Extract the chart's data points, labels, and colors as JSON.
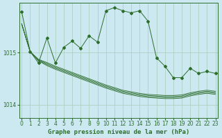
{
  "title": "Graphe pression niveau de la mer (hPa)",
  "bg_color": "#cce8f0",
  "line_color": "#2d6e2d",
  "grid_color": "#a8ccbc",
  "ylim": [
    1013.75,
    1015.95
  ],
  "yticks": [
    1014,
    1015
  ],
  "xlim": [
    0,
    23
  ],
  "xticks": [
    0,
    1,
    2,
    3,
    4,
    5,
    6,
    7,
    8,
    9,
    10,
    11,
    12,
    13,
    14,
    15,
    16,
    17,
    18,
    19,
    20,
    21,
    22,
    23
  ],
  "main": [
    1015.78,
    1015.02,
    1014.8,
    1015.28,
    1014.8,
    1015.1,
    1015.22,
    1015.08,
    1015.32,
    1015.2,
    1015.8,
    1015.86,
    1015.8,
    1015.76,
    1015.8,
    1015.6,
    1014.9,
    1014.74,
    1014.52,
    1014.52,
    1014.7,
    1014.6,
    1014.64,
    1014.6
  ],
  "smooth1": [
    1015.55,
    1015.02,
    1014.84,
    1014.75,
    1014.68,
    1014.62,
    1014.56,
    1014.5,
    1014.44,
    1014.38,
    1014.32,
    1014.27,
    1014.22,
    1014.19,
    1014.16,
    1014.14,
    1014.13,
    1014.12,
    1014.12,
    1014.13,
    1014.17,
    1014.2,
    1014.22,
    1014.2
  ],
  "smooth2": [
    1015.55,
    1015.02,
    1014.85,
    1014.77,
    1014.7,
    1014.64,
    1014.58,
    1014.52,
    1014.46,
    1014.4,
    1014.34,
    1014.29,
    1014.24,
    1014.21,
    1014.18,
    1014.16,
    1014.15,
    1014.14,
    1014.14,
    1014.15,
    1014.19,
    1014.22,
    1014.24,
    1014.22
  ],
  "smooth3": [
    1015.55,
    1015.02,
    1014.86,
    1014.79,
    1014.72,
    1014.66,
    1014.6,
    1014.54,
    1014.48,
    1014.42,
    1014.36,
    1014.31,
    1014.26,
    1014.23,
    1014.2,
    1014.18,
    1014.17,
    1014.16,
    1014.16,
    1014.17,
    1014.21,
    1014.24,
    1014.26,
    1014.24
  ],
  "smooth4": [
    1015.55,
    1015.02,
    1014.87,
    1014.81,
    1014.74,
    1014.68,
    1014.62,
    1014.56,
    1014.5,
    1014.44,
    1014.38,
    1014.33,
    1014.28,
    1014.25,
    1014.22,
    1014.2,
    1014.19,
    1014.18,
    1014.18,
    1014.19,
    1014.23,
    1014.26,
    1014.28,
    1014.26
  ],
  "xlabel_fontsize": 6.5,
  "tick_fontsize": 5.5
}
